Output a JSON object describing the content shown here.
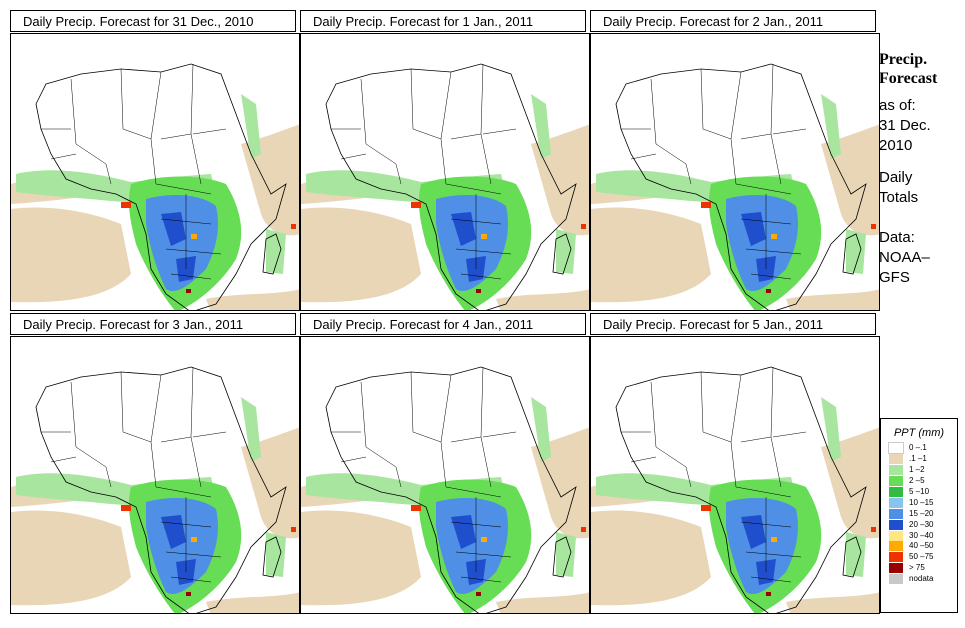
{
  "panels": [
    {
      "title": "Daily Precip. Forecast for  31 Dec., 2010"
    },
    {
      "title": "Daily Precip. Forecast for  1 Jan., 2011"
    },
    {
      "title": "Daily Precip. Forecast for  2 Jan., 2011"
    },
    {
      "title": "Daily Precip. Forecast for  3 Jan., 2011"
    },
    {
      "title": "Daily Precip. Forecast for  4 Jan., 2011"
    },
    {
      "title": "Daily Precip. Forecast for  5 Jan., 2011"
    }
  ],
  "sidebar": {
    "title_line1": "Precip.",
    "title_line2": "Forecast",
    "asof_label": "as of:",
    "asof_date1": "31 Dec.",
    "asof_date2": "2010",
    "totals1": "Daily",
    "totals2": "Totals",
    "data1": "Data:",
    "data2": "NOAA–",
    "data3": "GFS"
  },
  "legend": {
    "title": "PPT (mm)",
    "items": [
      {
        "label": "0 –.1",
        "color": "#ffffff"
      },
      {
        "label": ".1 –1",
        "color": "#e8d6b6"
      },
      {
        "label": "1 –2",
        "color": "#a8e6a0"
      },
      {
        "label": "2 –5",
        "color": "#66dd55"
      },
      {
        "label": "5 –10",
        "color": "#33bb44"
      },
      {
        "label": "10 –15",
        "color": "#88c4f0"
      },
      {
        "label": "15 –20",
        "color": "#4f8fe6"
      },
      {
        "label": "20 –30",
        "color": "#1f4fcc"
      },
      {
        "label": "30 –40",
        "color": "#ffe680"
      },
      {
        "label": "40 –50",
        "color": "#ffaa00"
      },
      {
        "label": "50 –75",
        "color": "#ee3300"
      },
      {
        "label": "> 75",
        "color": "#990000"
      },
      {
        "label": "nodata",
        "color": "#c8c8c8"
      }
    ]
  },
  "colors": {
    "ocean_dry": "#e8d6b6",
    "light_rain": "#a8e6a0",
    "moderate_rain": "#66dd55",
    "heavy_rain": "#4f8fe6",
    "very_heavy_rain": "#ee3300"
  }
}
